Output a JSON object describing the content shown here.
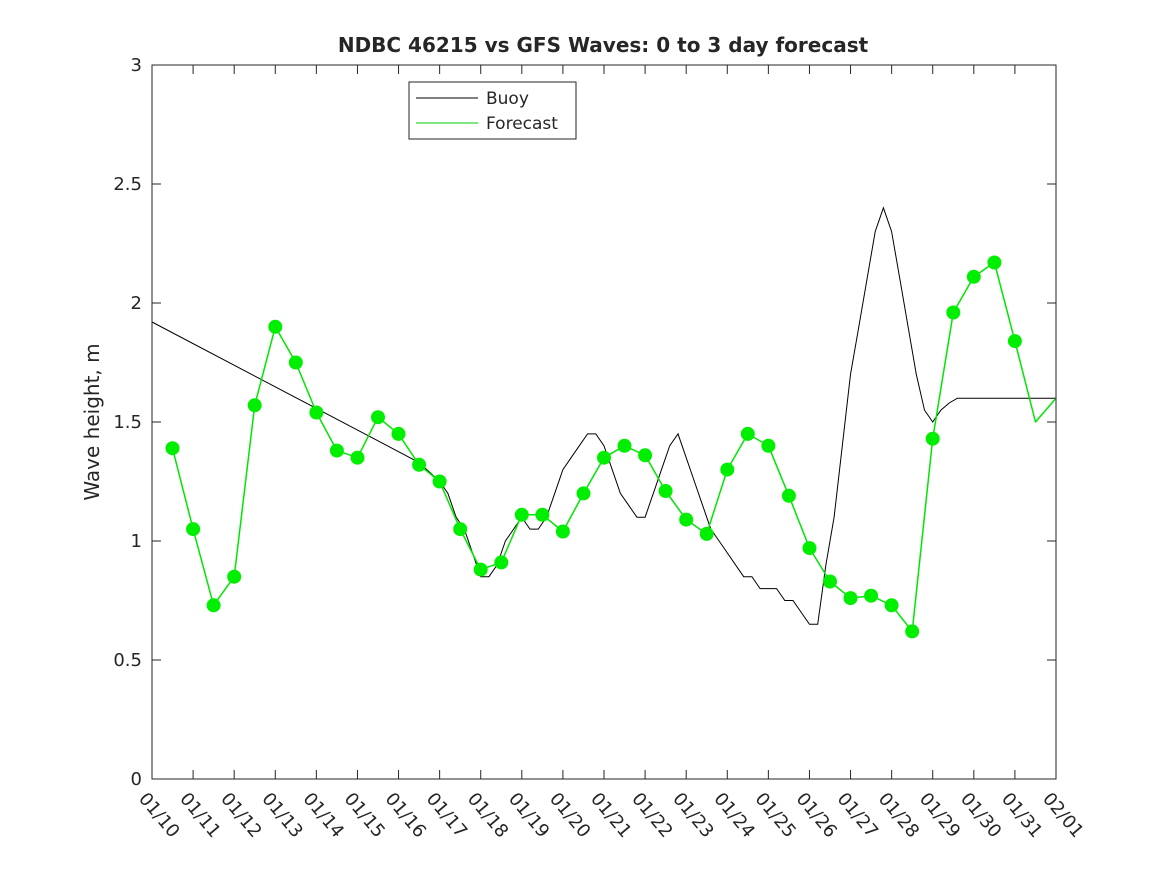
{
  "chart_data": {
    "type": "line",
    "title": "NDBC 46215 vs GFS Waves: 0 to 3 day forecast",
    "xlabel": "",
    "ylabel": "Wave height, m",
    "xlim": [
      0,
      22
    ],
    "ylim": [
      0,
      3
    ],
    "yticks": [
      0,
      0.5,
      1,
      1.5,
      2,
      2.5,
      3
    ],
    "yticklabels": [
      "0",
      "0.5",
      "1",
      "1.5",
      "2",
      "2.5",
      "3"
    ],
    "xticks": [
      0,
      1,
      2,
      3,
      4,
      5,
      6,
      7,
      8,
      9,
      10,
      11,
      12,
      13,
      14,
      15,
      16,
      17,
      18,
      19,
      20,
      21,
      22
    ],
    "xticklabels": [
      "01/10",
      "01/11",
      "01/12",
      "01/13",
      "01/14",
      "01/15",
      "01/16",
      "01/17",
      "01/18",
      "01/19",
      "01/20",
      "01/21",
      "01/22",
      "01/23",
      "01/24",
      "01/25",
      "01/26",
      "01/27",
      "01/28",
      "01/29",
      "01/30",
      "01/31",
      "02/01"
    ],
    "legend": {
      "location": "top-center",
      "entries": [
        {
          "label": "Buoy",
          "color": "#000000"
        },
        {
          "label": "Forecast",
          "color": "#00cc00"
        }
      ]
    },
    "colors": {
      "buoy": "#000000",
      "forecast": "#00e600",
      "marker": "#00ee00",
      "axis": "#262626"
    },
    "series": [
      {
        "name": "Buoy",
        "x": [
          0,
          6.5,
          7,
          7.2,
          7.4,
          7.6,
          7.8,
          8,
          8.2,
          8.4,
          8.6,
          8.8,
          9,
          9.2,
          9.4,
          9.6,
          9.8,
          10,
          10.2,
          10.4,
          10.6,
          10.8,
          11,
          11.2,
          11.4,
          11.6,
          11.8,
          12,
          12.2,
          12.4,
          12.6,
          12.8,
          13,
          13.2,
          13.4,
          13.6,
          13.8,
          14,
          14.2,
          14.4,
          14.6,
          14.8,
          15,
          15.2,
          15.4,
          15.6,
          15.8,
          16,
          16.2,
          16.4,
          16.6,
          16.8,
          17,
          17.2,
          17.4,
          17.6,
          17.8,
          18,
          18.2,
          18.4,
          18.6,
          18.8,
          19,
          19.2,
          19.4,
          19.6,
          19.8,
          20,
          20.2,
          20.4,
          20.6,
          20.8,
          21,
          21.2,
          21.4,
          21.6,
          21.8,
          22
        ],
        "values": [
          1.92,
          1.33,
          1.25,
          1.2,
          1.1,
          1.05,
          0.95,
          0.85,
          0.85,
          0.9,
          1.0,
          1.05,
          1.1,
          1.05,
          1.05,
          1.1,
          1.2,
          1.3,
          1.35,
          1.4,
          1.45,
          1.45,
          1.4,
          1.3,
          1.2,
          1.15,
          1.1,
          1.1,
          1.2,
          1.3,
          1.4,
          1.45,
          1.35,
          1.25,
          1.15,
          1.05,
          1.0,
          0.95,
          0.9,
          0.85,
          0.85,
          0.8,
          0.8,
          0.8,
          0.75,
          0.75,
          0.7,
          0.65,
          0.65,
          0.9,
          1.1,
          1.4,
          1.7,
          1.9,
          2.1,
          2.3,
          2.4,
          2.3,
          2.1,
          1.9,
          1.7,
          1.55,
          1.5,
          1.55,
          1.58,
          1.6,
          1.6,
          1.6,
          1.6,
          1.6,
          1.6,
          1.6,
          1.6,
          1.6,
          1.6,
          1.6,
          1.6,
          1.6
        ]
      },
      {
        "name": "Forecast",
        "x": [
          0.5,
          1,
          1.5,
          2,
          2.5,
          3,
          3.5,
          4,
          4.5,
          5,
          5.5,
          6,
          6.5,
          7,
          7.5,
          8,
          8.5,
          9,
          9.5,
          10,
          10.5,
          11,
          11.5,
          12,
          12.5,
          13,
          13.5,
          14,
          14.5,
          15,
          15.5,
          16,
          16.5,
          17,
          17.5,
          18,
          18.5,
          19,
          19.5,
          20,
          20.5,
          21,
          21.5,
          22
        ],
        "values": [
          1.39,
          1.05,
          0.73,
          0.85,
          1.57,
          1.9,
          1.75,
          1.54,
          1.38,
          1.35,
          1.52,
          1.45,
          1.32,
          1.25,
          1.05,
          0.88,
          0.91,
          1.11,
          1.11,
          1.04,
          1.2,
          1.35,
          1.4,
          1.36,
          1.21,
          1.09,
          1.03,
          1.3,
          1.45,
          1.4,
          1.19,
          0.97,
          0.83,
          0.76,
          0.77,
          0.73,
          0.62,
          1.43,
          1.96,
          2.11,
          2.17,
          1.84,
          1.5,
          1.6
        ]
      }
    ],
    "markers": {
      "name": "Forecast points",
      "x": [
        0.5,
        1,
        1.5,
        2,
        2.5,
        3,
        3.5,
        4,
        4.5,
        5,
        5.5,
        6,
        6.5,
        7,
        7.5,
        8,
        8.5,
        9,
        9.5,
        10,
        10.5,
        11,
        11.5,
        12,
        12.5,
        13,
        13.5,
        14,
        14.5,
        15,
        15.5,
        16,
        16.5,
        17,
        17.5,
        18,
        18.5,
        19,
        19.5,
        20,
        20.5,
        21
      ],
      "values": [
        1.39,
        1.05,
        0.73,
        0.85,
        1.57,
        1.9,
        1.75,
        1.54,
        1.38,
        1.35,
        1.52,
        1.45,
        1.32,
        1.25,
        1.05,
        0.88,
        0.91,
        1.11,
        1.11,
        1.04,
        1.2,
        1.35,
        1.4,
        1.36,
        1.21,
        1.09,
        1.03,
        1.3,
        1.45,
        1.4,
        1.19,
        0.97,
        0.83,
        0.76,
        0.77,
        0.73,
        0.62,
        1.43,
        1.96,
        2.11,
        2.17,
        1.84
      ]
    }
  }
}
